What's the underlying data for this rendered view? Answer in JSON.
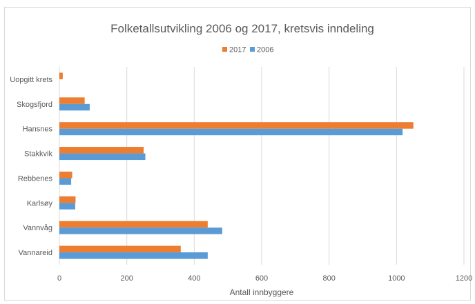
{
  "chart_data": {
    "type": "bar",
    "orientation": "horizontal",
    "title": "Folketallsutvikling 2006 og 2017, kretsvis inndeling",
    "xlabel": "Antall innbyggere",
    "ylabel": "",
    "xlim": [
      0,
      1200
    ],
    "xticks": [
      "0",
      "200",
      "400",
      "600",
      "800",
      "1000",
      "1200"
    ],
    "grid": true,
    "legend_position": "top",
    "categories": [
      "Uopgitt krets",
      "Skogsfjord",
      "Hansnes",
      "Stakkvik",
      "Rebbenes",
      "Karlsøy",
      "Vannvåg",
      "Vannareid"
    ],
    "series": [
      {
        "name": "2017",
        "color": "#ed7d31",
        "values": [
          10,
          75,
          1050,
          250,
          38,
          48,
          440,
          360
        ]
      },
      {
        "name": "2006",
        "color": "#5b9bd5",
        "values": [
          0,
          90,
          1018,
          255,
          35,
          47,
          483,
          440
        ]
      }
    ],
    "legend_order": [
      "2017",
      "2006"
    ]
  }
}
